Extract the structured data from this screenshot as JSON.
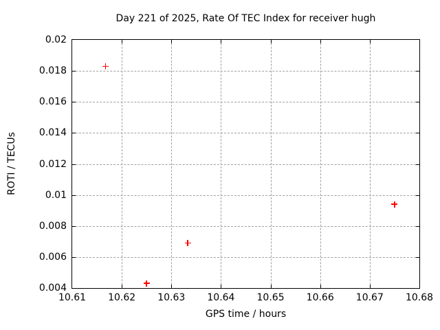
{
  "chart_data": {
    "type": "scatter",
    "title": "Day 221 of 2025, Rate Of TEC Index for receiver hugh",
    "xlabel": "GPS time / hours",
    "ylabel": "ROTI / TECUs",
    "xlim": [
      10.61,
      10.68
    ],
    "ylim": [
      0.004,
      0.02
    ],
    "xticks": {
      "values": [
        10.61,
        10.62,
        10.63,
        10.64,
        10.65,
        10.66,
        10.67,
        10.68
      ],
      "labels": [
        "10.61",
        "10.62",
        "10.63",
        "10.64",
        "10.65",
        "10.66",
        "10.67",
        "10.68"
      ]
    },
    "yticks": {
      "values": [
        0.004,
        0.006,
        0.008,
        0.01,
        0.012,
        0.014,
        0.016,
        0.018,
        0.02
      ],
      "labels": [
        "0.004",
        "0.006",
        "0.008",
        "0.01",
        "0.012",
        "0.014",
        "0.016",
        "0.018",
        "0.02"
      ]
    },
    "grid": true,
    "legend_position": "none",
    "background_color": "#ffffff",
    "axis_color": "#000000",
    "grid_color": "#9f9f9f",
    "series": [
      {
        "name": "ROTI",
        "marker": "plus",
        "color": "#ff0000",
        "points": [
          [
            10.6167,
            0.0183
          ],
          [
            10.625,
            0.0043
          ],
          [
            10.6333,
            0.0069
          ],
          [
            10.675,
            0.0094
          ]
        ]
      }
    ]
  }
}
